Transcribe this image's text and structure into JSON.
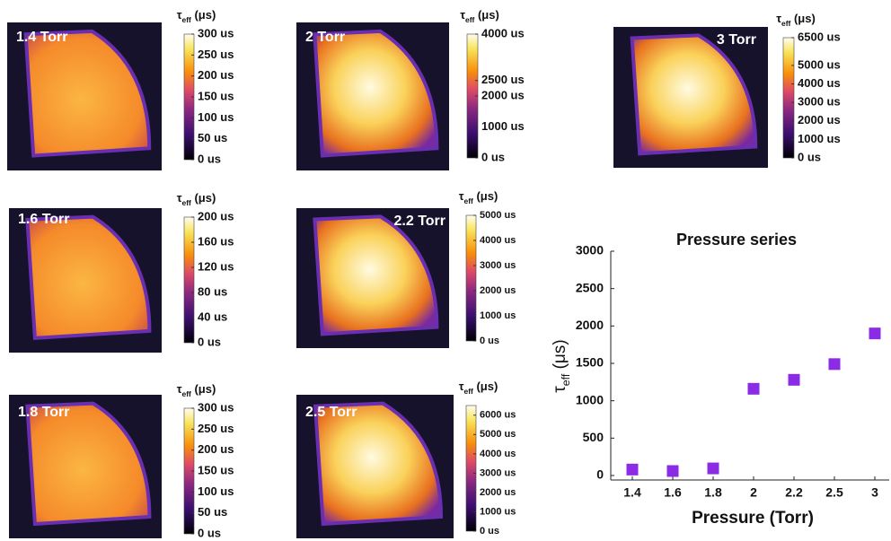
{
  "colorbar_title": {
    "symbol": "τ",
    "sub": "eff",
    "unit": "(μs)"
  },
  "panels": [
    {
      "label": "1.4 Torr",
      "cbar_lim": [
        0,
        300
      ],
      "cbar_ticks": [
        {
          "value": 0,
          "label": "0 us"
        },
        {
          "value": 50,
          "label": "50 us"
        },
        {
          "value": 100,
          "label": "100 us"
        },
        {
          "value": 150,
          "label": "150 us"
        },
        {
          "value": 200,
          "label": "200 us"
        },
        {
          "value": 250,
          "label": "250 us"
        },
        {
          "value": 300,
          "label": "300 us"
        }
      ]
    },
    {
      "label": "2 Torr",
      "cbar_lim": [
        0,
        4000
      ],
      "cbar_ticks": [
        {
          "value": 0,
          "label": "0 us"
        },
        {
          "value": 1000,
          "label": "1000 us"
        },
        {
          "value": 2000,
          "label": "2000 us"
        },
        {
          "value": 2500,
          "label": "2500 us"
        },
        {
          "value": 4000,
          "label": "4000 us"
        }
      ]
    },
    {
      "label": "3 Torr",
      "cbar_lim": [
        0,
        6500
      ],
      "cbar_ticks": [
        {
          "value": 0,
          "label": "0 us"
        },
        {
          "value": 1000,
          "label": "1000 us"
        },
        {
          "value": 2000,
          "label": "2000 us"
        },
        {
          "value": 3000,
          "label": "3000 us"
        },
        {
          "value": 4000,
          "label": "4000 us"
        },
        {
          "value": 5000,
          "label": "5000 us"
        },
        {
          "value": 6500,
          "label": "6500 us"
        }
      ]
    },
    {
      "label": "1.6 Torr",
      "cbar_lim": [
        0,
        200
      ],
      "cbar_ticks": [
        {
          "value": 0,
          "label": "0 us"
        },
        {
          "value": 40,
          "label": "40 us"
        },
        {
          "value": 80,
          "label": "80 us"
        },
        {
          "value": 120,
          "label": "120 us"
        },
        {
          "value": 160,
          "label": "160 us"
        },
        {
          "value": 200,
          "label": "200 us"
        }
      ]
    },
    {
      "label": "2.2 Torr",
      "cbar_lim": [
        0,
        5000
      ],
      "cbar_ticks": [
        {
          "value": 0,
          "label": "0 us"
        },
        {
          "value": 1000,
          "label": "1000 us"
        },
        {
          "value": 2000,
          "label": "2000 us"
        },
        {
          "value": 3000,
          "label": "3000 us"
        },
        {
          "value": 4000,
          "label": "4000 us"
        },
        {
          "value": 5000,
          "label": "5000 us"
        }
      ]
    },
    {
      "label": "1.8 Torr",
      "cbar_lim": [
        0,
        300
      ],
      "cbar_ticks": [
        {
          "value": 0,
          "label": "0 us"
        },
        {
          "value": 50,
          "label": "50 us"
        },
        {
          "value": 100,
          "label": "100 us"
        },
        {
          "value": 150,
          "label": "150 us"
        },
        {
          "value": 200,
          "label": "200 us"
        },
        {
          "value": 250,
          "label": "250 us"
        },
        {
          "value": 300,
          "label": "300 us"
        }
      ]
    },
    {
      "label": "2.5 Torr",
      "cbar_lim": [
        0,
        6500
      ],
      "cbar_ticks": [
        {
          "value": 0,
          "label": "0 us"
        },
        {
          "value": 1000,
          "label": "1000 us"
        },
        {
          "value": 2000,
          "label": "2000 us"
        },
        {
          "value": 3000,
          "label": "3000 us"
        },
        {
          "value": 4000,
          "label": "4000 us"
        },
        {
          "value": 5000,
          "label": "5000 us"
        },
        {
          "value": 6000,
          "label": "6000 us"
        }
      ]
    }
  ],
  "chart_data": {
    "type": "scatter",
    "title": "Pressure series",
    "x_label": "Pressure (Torr)",
    "y_label": {
      "symbol": "τ",
      "sub": "eff",
      "unit": "(μs)"
    },
    "categories": [
      "1.4",
      "1.6",
      "1.8",
      "2",
      "2.2",
      "2.5",
      "3"
    ],
    "values": [
      80,
      60,
      95,
      1160,
      1280,
      1490,
      1900
    ],
    "color": "#8b2be6",
    "ylim": [
      -60,
      3000
    ],
    "yticks": [
      0,
      500,
      1000,
      1500,
      2000,
      2500,
      3000
    ],
    "grid": false
  }
}
